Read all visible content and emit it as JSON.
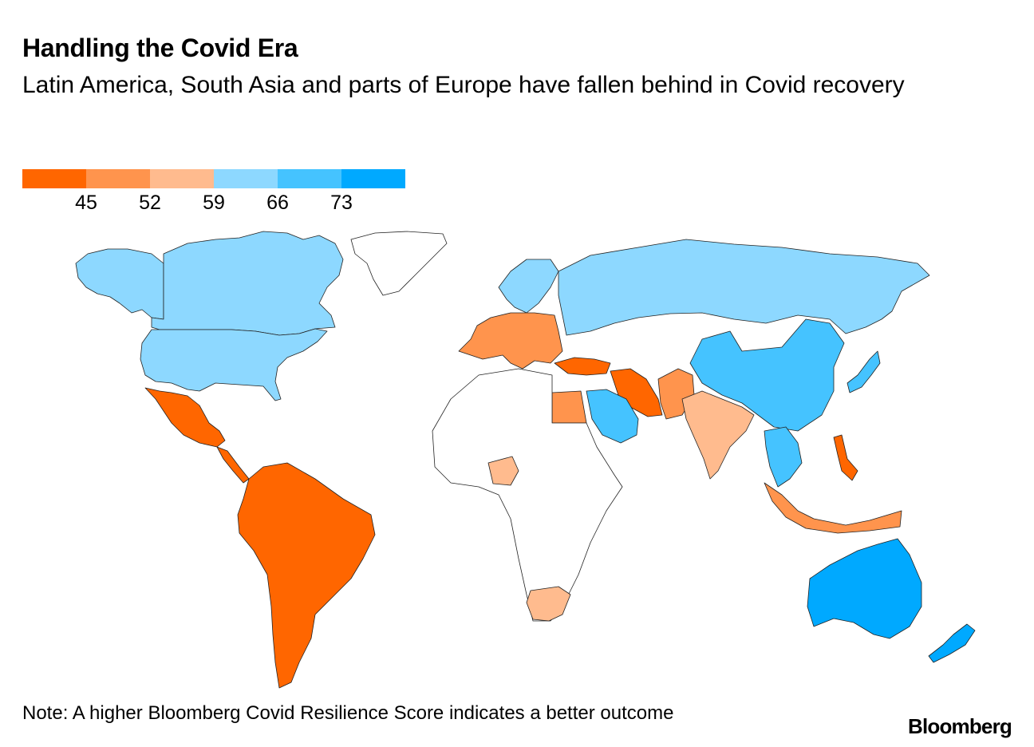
{
  "header": {
    "title": "Handling the Covid Era",
    "subtitle": "Latin America, South Asia and parts of Europe have fallen behind in Covid recovery"
  },
  "legend": {
    "colors": [
      "#ff6600",
      "#ff944d",
      "#ffbb8e",
      "#8dd8ff",
      "#45c3ff",
      "#00a9ff"
    ],
    "ticks": [
      "45",
      "52",
      "59",
      "66",
      "73"
    ]
  },
  "map": {
    "no_data_color": "#ffffff",
    "regions": [
      {
        "name": "Canada",
        "bin": 3
      },
      {
        "name": "United States",
        "bin": 3
      },
      {
        "name": "Alaska",
        "bin": 3
      },
      {
        "name": "Greenland",
        "bin": null
      },
      {
        "name": "Mexico",
        "bin": 0
      },
      {
        "name": "South America",
        "bin": 0
      },
      {
        "name": "Northern Europe",
        "bin": 3
      },
      {
        "name": "Western Europe",
        "bin": 1
      },
      {
        "name": "Russia",
        "bin": 3
      },
      {
        "name": "Turkey",
        "bin": 0
      },
      {
        "name": "Iran",
        "bin": 0
      },
      {
        "name": "Saudi Arabia",
        "bin": 4
      },
      {
        "name": "Egypt",
        "bin": 1
      },
      {
        "name": "India",
        "bin": 2
      },
      {
        "name": "Pakistan",
        "bin": 1
      },
      {
        "name": "China",
        "bin": 4
      },
      {
        "name": "Japan",
        "bin": 4
      },
      {
        "name": "Southeast Asia",
        "bin": 4
      },
      {
        "name": "Indonesia",
        "bin": 1
      },
      {
        "name": "Philippines",
        "bin": 0
      },
      {
        "name": "Nigeria",
        "bin": 2
      },
      {
        "name": "South Africa",
        "bin": 2
      },
      {
        "name": "Africa",
        "bin": null
      },
      {
        "name": "Australia",
        "bin": 5
      },
      {
        "name": "New Zealand",
        "bin": 5
      }
    ]
  },
  "footer": {
    "note": "Note: A higher Bloomberg Covid Resilience Score indicates a better outcome",
    "brand": "Bloomberg"
  }
}
